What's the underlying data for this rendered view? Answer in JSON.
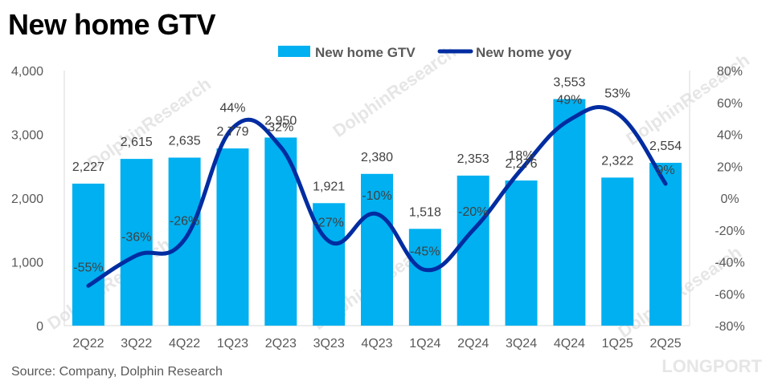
{
  "title": "New home GTV",
  "source": "Source: Company, Dolphin Research",
  "watermark": "LONGPORT",
  "watermark_text": "DolphinResearch",
  "colors": {
    "bar": "#00b0f0",
    "line": "#002ca1",
    "axis": "#d9d9d9",
    "grid": "#d9d9d9"
  },
  "chart_data": {
    "type": "bar",
    "title": "New home GTV",
    "categories": [
      "2Q22",
      "3Q22",
      "4Q22",
      "1Q23",
      "2Q23",
      "3Q23",
      "4Q23",
      "1Q24",
      "2Q24",
      "3Q24",
      "4Q24",
      "1Q25",
      "2Q25"
    ],
    "series": [
      {
        "name": "New home GTV",
        "type": "bar",
        "axis": "left",
        "values": [
          2227,
          2615,
          2635,
          2779,
          2950,
          1921,
          2380,
          1518,
          2353,
          2276,
          3553,
          2322,
          2554
        ],
        "labels": [
          "2,227",
          "2,615",
          "2,635",
          "2,779",
          "2,950",
          "1,921",
          "2,380",
          "1,518",
          "2,353",
          "2,276",
          "3,553",
          "2,322",
          "2,554"
        ]
      },
      {
        "name": "New home yoy",
        "type": "line",
        "axis": "right",
        "values": [
          -55,
          -36,
          -26,
          44,
          32,
          -27,
          -10,
          -45,
          -20,
          18,
          49,
          53,
          9
        ],
        "labels": [
          "-55%",
          "-36%",
          "-26%",
          "44%",
          "32%",
          "-27%",
          "-10%",
          "-45%",
          "-20%",
          "18%",
          "49%",
          "53%",
          "9%"
        ]
      }
    ],
    "y_left": {
      "ylim": [
        0,
        4000
      ],
      "ticks": [
        "0",
        "1,000",
        "2,000",
        "3,000",
        "4,000"
      ]
    },
    "y_right": {
      "ylim": [
        -80,
        80
      ],
      "ticks": [
        "-80%",
        "-60%",
        "-40%",
        "-20%",
        "0%",
        "20%",
        "40%",
        "60%",
        "80%"
      ]
    },
    "legend_position": "top-center",
    "grid": false
  }
}
